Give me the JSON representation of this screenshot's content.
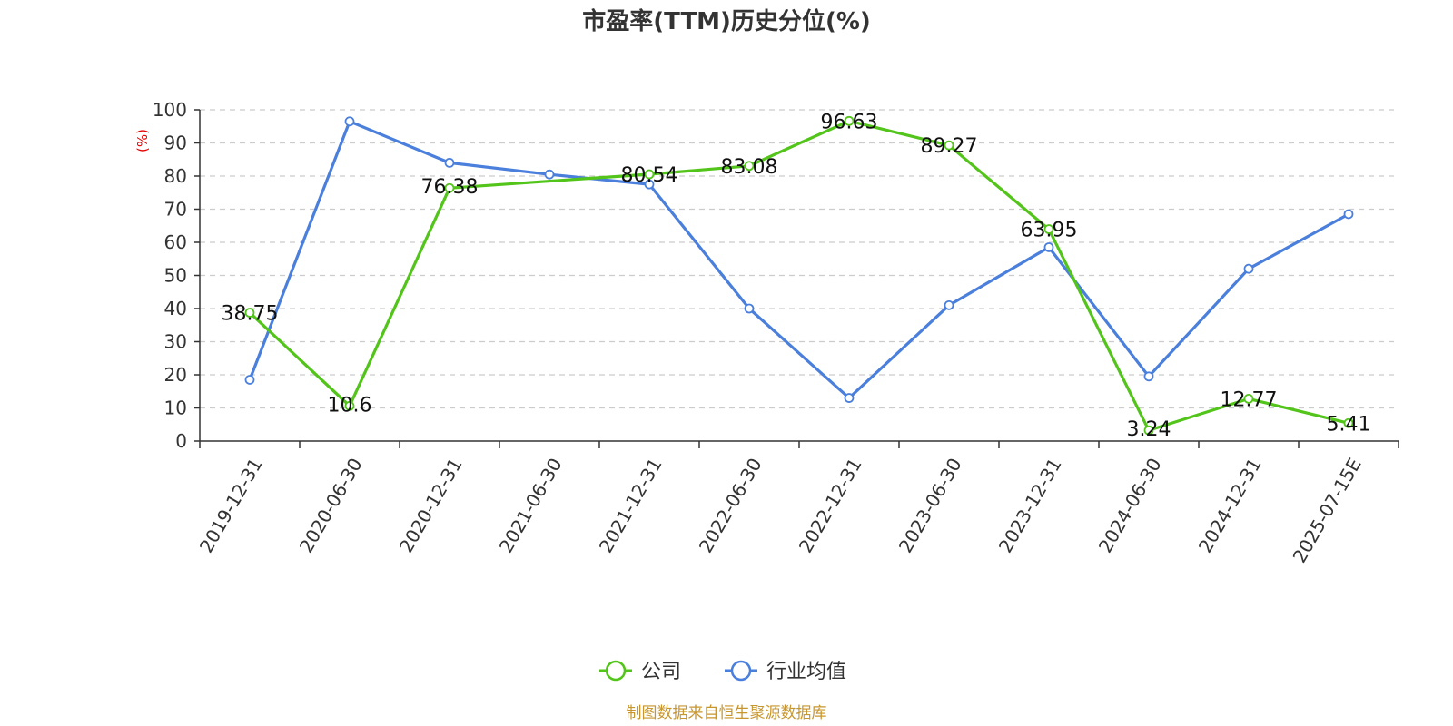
{
  "chart_data": {
    "type": "line",
    "title": "市盈率(TTM)历史分位(%)",
    "ylabel": "(%)",
    "ylim": [
      0,
      100
    ],
    "yticks": [
      0,
      10,
      20,
      30,
      40,
      50,
      60,
      70,
      80,
      90,
      100
    ],
    "categories": [
      "2019-12-31",
      "2020-06-30",
      "2020-12-31",
      "2021-06-30",
      "2021-12-31",
      "2022-06-30",
      "2022-12-31",
      "2023-06-30",
      "2023-12-31",
      "2024-06-30",
      "2024-12-31",
      "2025-07-15E"
    ],
    "grid": true,
    "legend_position": "bottom-center",
    "series": [
      {
        "name": "公司",
        "color": "#52c41a",
        "values": [
          38.75,
          10.6,
          76.38,
          null,
          80.54,
          83.08,
          96.63,
          89.27,
          63.95,
          3.24,
          12.77,
          5.41
        ],
        "labels": [
          "38.75",
          "10.6",
          "76.38",
          "",
          "80.54",
          "83.08",
          "96.63",
          "89.27",
          "63.95",
          "3.24",
          "12.77",
          "5.41"
        ]
      },
      {
        "name": "行业均值",
        "color": "#4a7fdc",
        "values": [
          18.5,
          96.5,
          84.0,
          80.5,
          77.5,
          40.0,
          13.0,
          41.0,
          58.5,
          19.5,
          52.0,
          68.5
        ]
      }
    ],
    "source": "制图数据来自恒生聚源数据库"
  }
}
